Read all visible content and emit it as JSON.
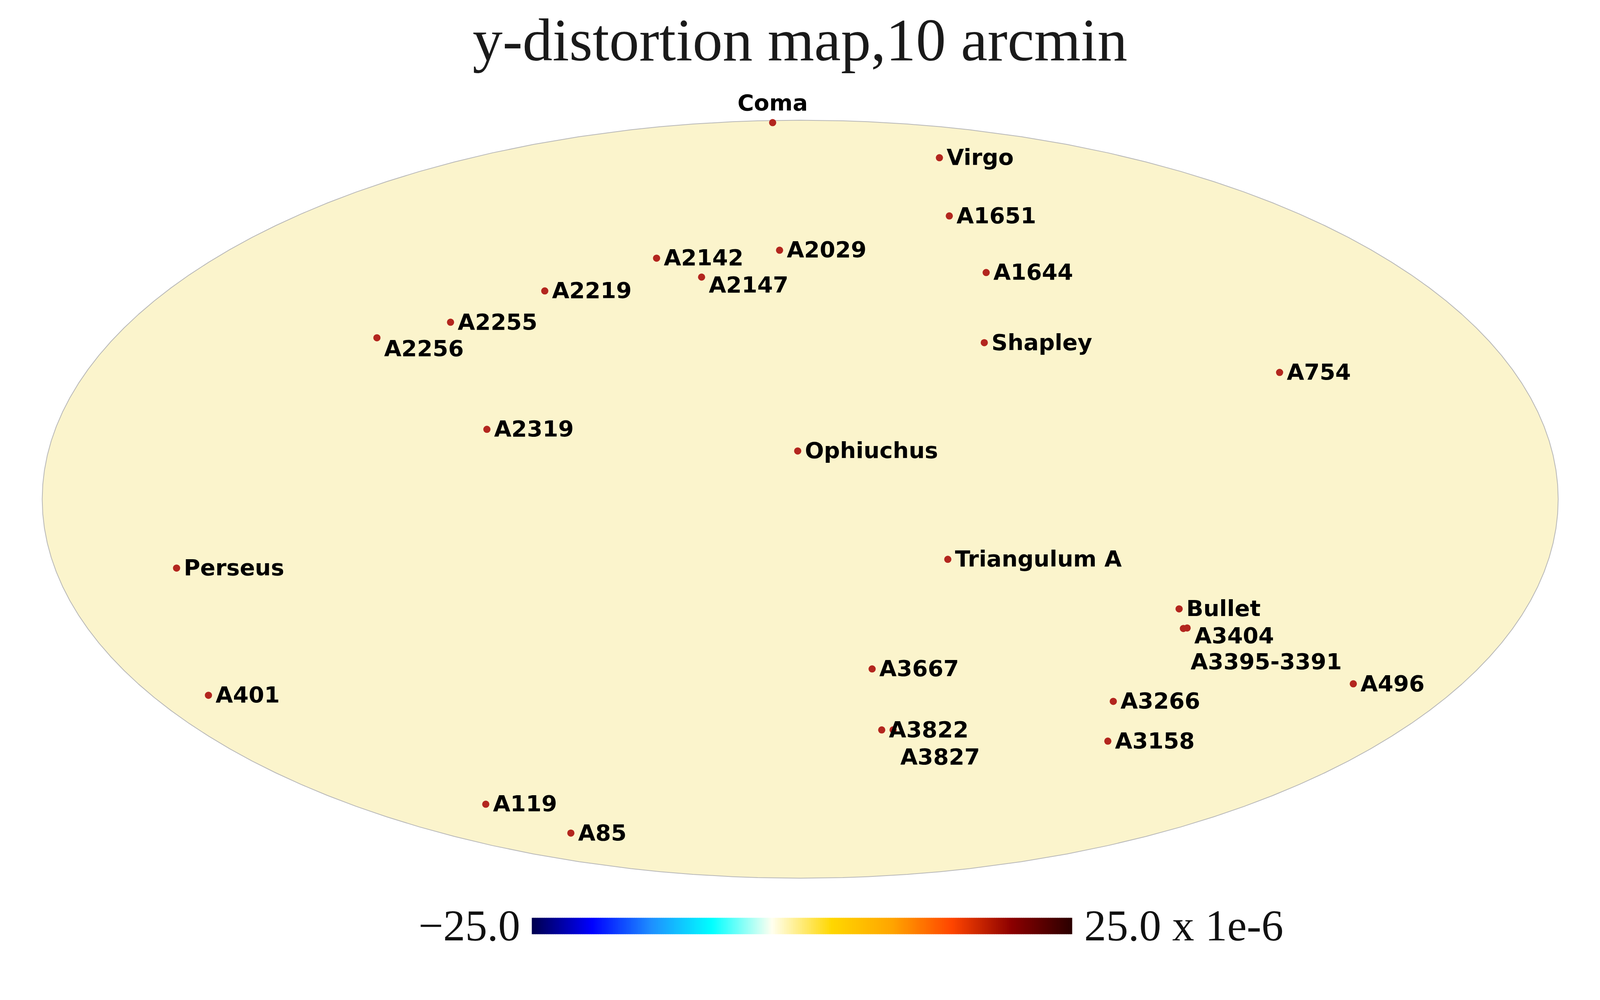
{
  "chart_data": {
    "type": "map",
    "title": "y-distortion map,10 arcmin",
    "clusters": [
      {
        "name": "Coma",
        "l": 58.1,
        "b": 88.0
      },
      {
        "name": "Virgo",
        "l": 283.8,
        "b": 74.4
      },
      {
        "name": "A1651",
        "l": 306.7,
        "b": 58.6
      },
      {
        "name": "A2142",
        "l": 44.2,
        "b": 48.7
      },
      {
        "name": "A2029",
        "l": 6.5,
        "b": 50.5
      },
      {
        "name": "A2147",
        "l": 28.9,
        "b": 44.5
      },
      {
        "name": "A1644",
        "l": 304.9,
        "b": 45.5
      },
      {
        "name": "A2219",
        "l": 72.6,
        "b": 41.5
      },
      {
        "name": "A2255",
        "l": 93.9,
        "b": 34.9
      },
      {
        "name": "A2256",
        "l": 111.1,
        "b": 31.7
      },
      {
        "name": "Shapley",
        "l": 312.0,
        "b": 30.7
      },
      {
        "name": "A754",
        "l": 239.2,
        "b": 24.7
      },
      {
        "name": "A2319",
        "l": 75.7,
        "b": 13.5
      },
      {
        "name": "Ophiuchus",
        "l": 0.6,
        "b": 9.3
      },
      {
        "name": "Triangulum A",
        "l": 324.5,
        "b": -11.6
      },
      {
        "name": "Perseus",
        "l": 150.6,
        "b": -13.3
      },
      {
        "name": "Bullet",
        "l": 266.0,
        "b": -21.3
      },
      {
        "name": "A3404",
        "l": 262.3,
        "b": -25.1
      },
      {
        "name": "A3395-3391",
        "l": 263.2,
        "b": -25.2
      },
      {
        "name": "A3667",
        "l": 340.9,
        "b": -33.4
      },
      {
        "name": "A496",
        "l": 209.6,
        "b": -36.5
      },
      {
        "name": "A3266",
        "l": 272.1,
        "b": -40.2
      },
      {
        "name": "A401",
        "l": 164.2,
        "b": -38.9
      },
      {
        "name": "A3822",
        "l": 335.6,
        "b": -46.4
      },
      {
        "name": "A3827",
        "l": 332.2,
        "b": -46.4
      },
      {
        "name": "A3158",
        "l": 265.1,
        "b": -48.9
      },
      {
        "name": "A119",
        "l": 125.8,
        "b": -64.1
      },
      {
        "name": "A85",
        "l": 115.1,
        "b": -72.1
      }
    ],
    "color_bar": {
      "range": [
        -25,
        25
      ],
      "ticks": [
        {
          "value": -25,
          "label": "−25.0"
        },
        {
          "value": 25,
          "label": "25.0 x 1e-6"
        }
      ],
      "colors": [
        "#00004d",
        "#0000ff",
        "#1e90ff",
        "#00ffff",
        "#fffff0",
        "#ffd700",
        "#ffa500",
        "#ff4500",
        "#8b0000",
        "#2b0000"
      ]
    }
  }
}
